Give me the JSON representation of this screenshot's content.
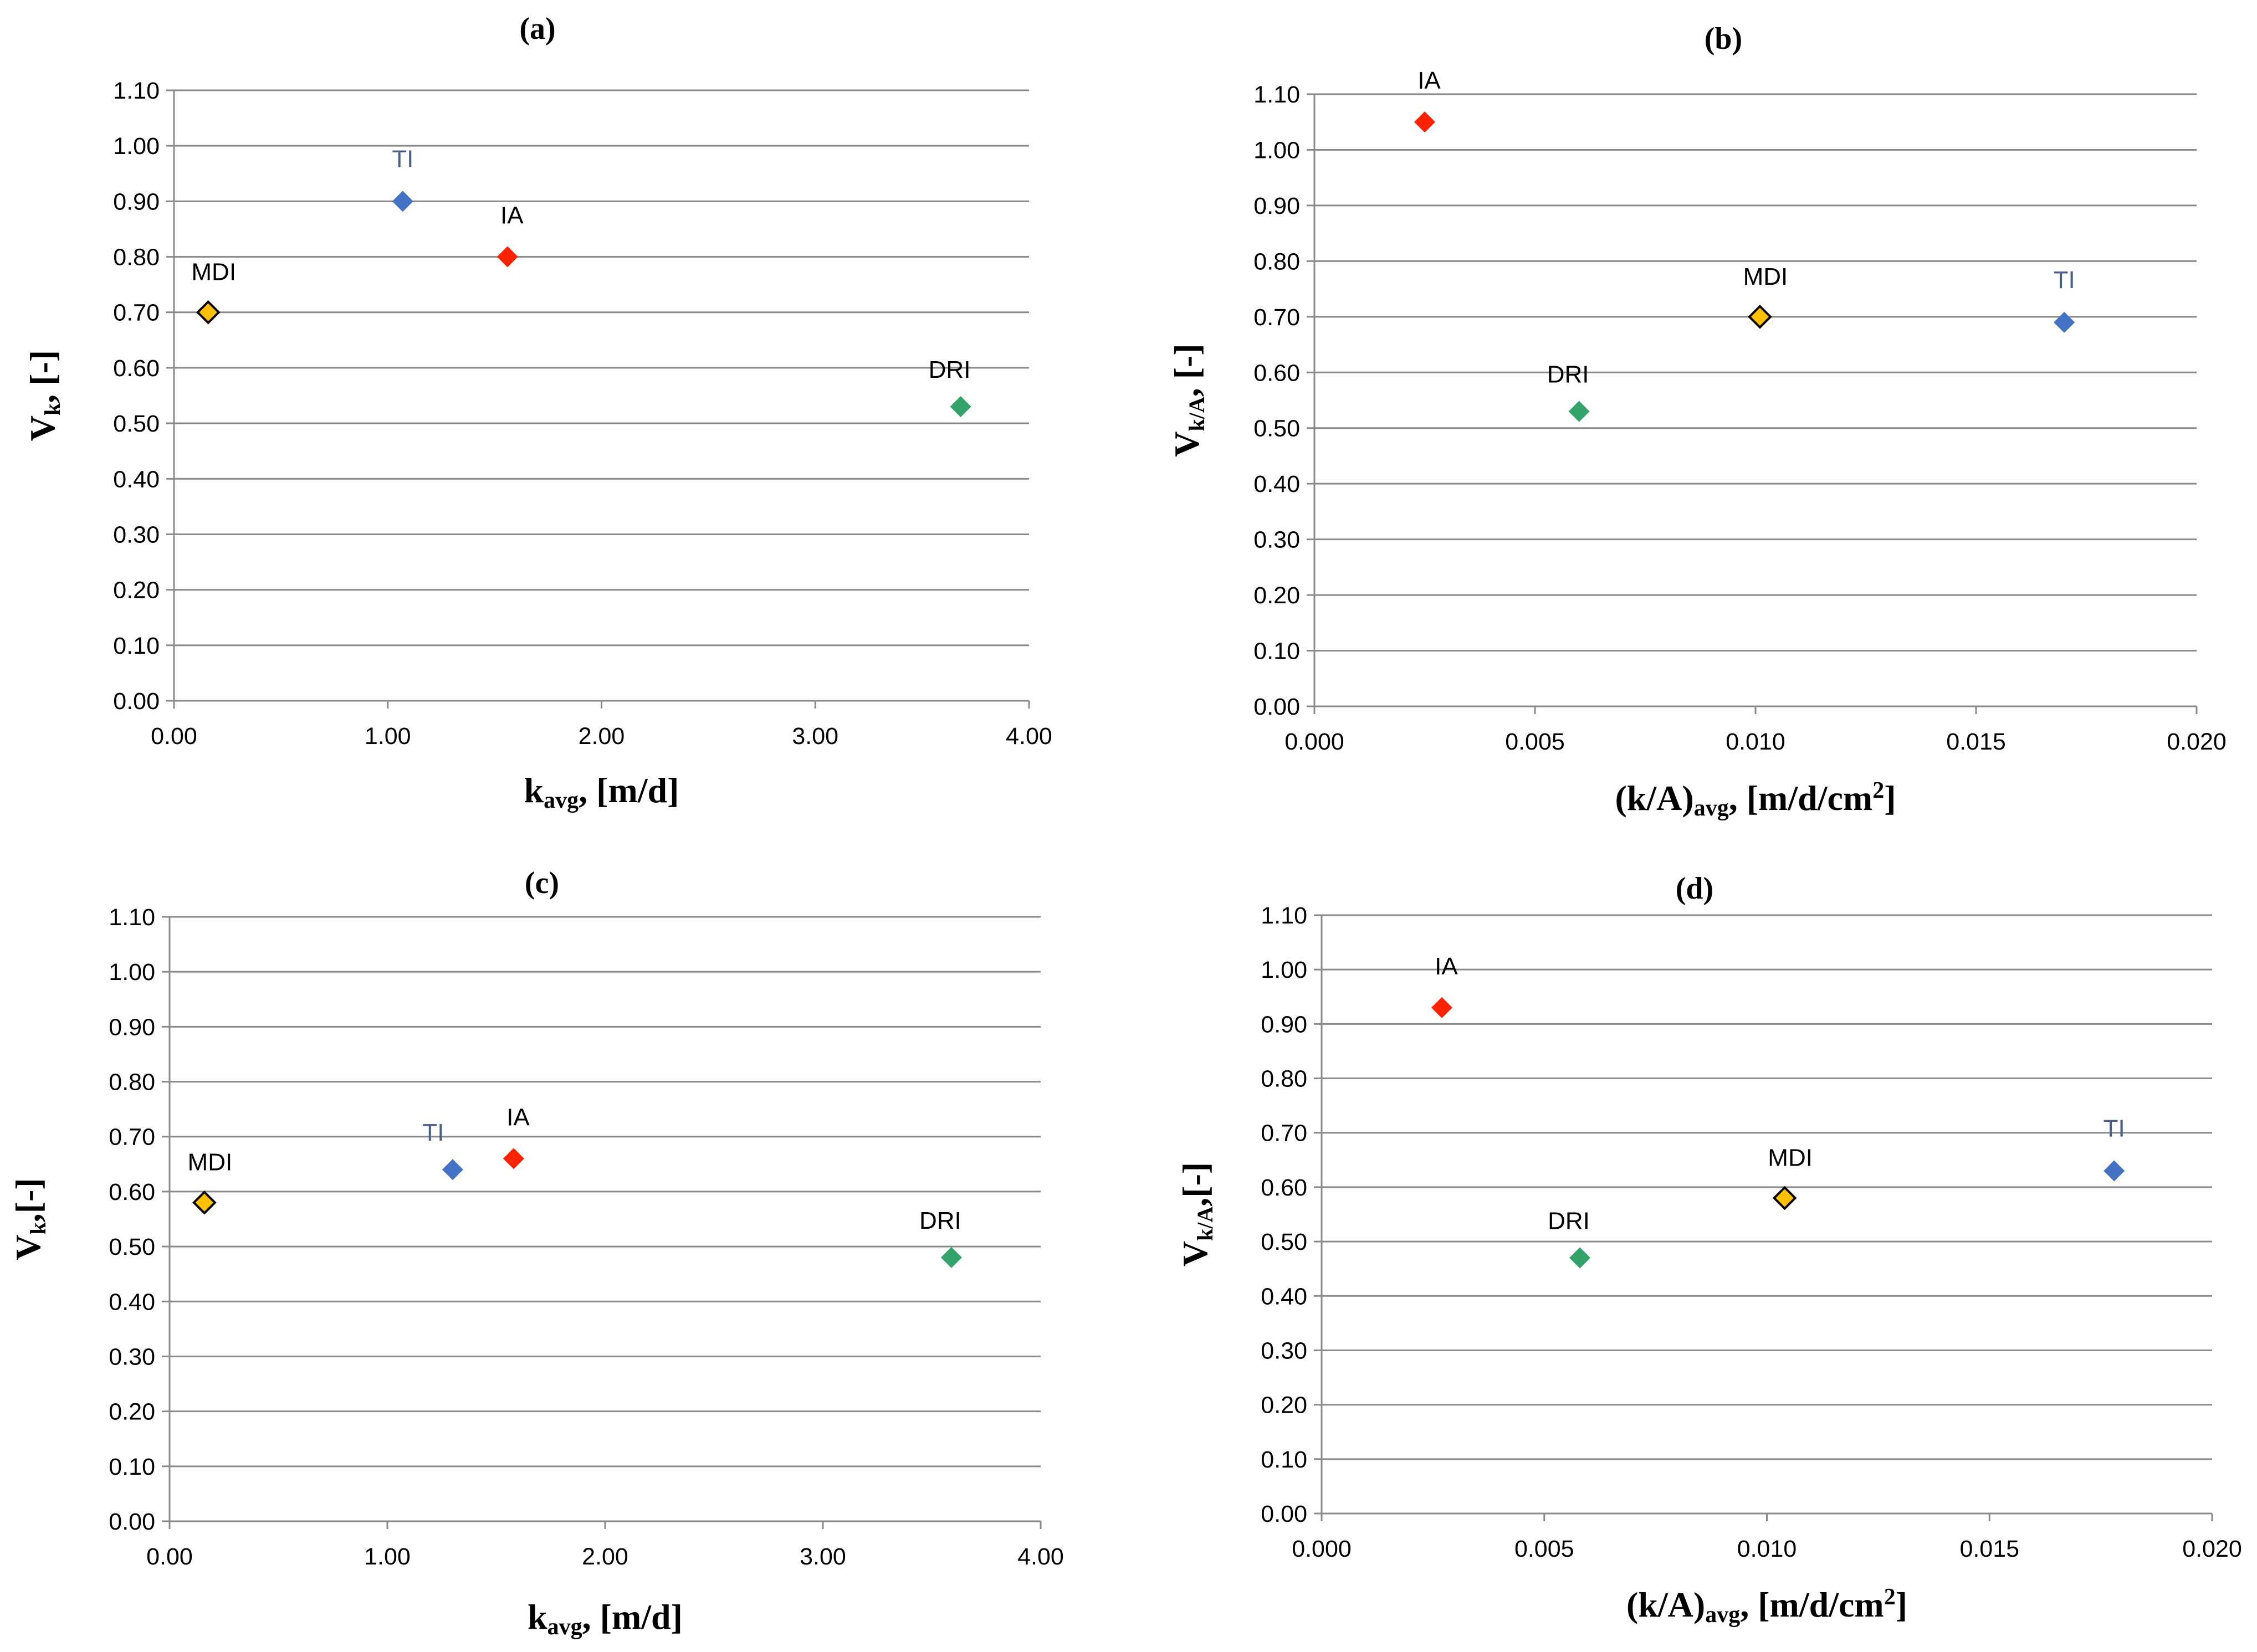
{
  "chart_data": [
    {
      "type": "scatter",
      "title": "(a)",
      "xlabel": {
        "main": "k",
        "sub": "avg",
        "rest": ", [m/d]"
      },
      "ylabel": {
        "main": "V",
        "sub": "k",
        "rest": ", [-]"
      },
      "xlim": [
        0,
        4
      ],
      "ylim": [
        0,
        1.1
      ],
      "xticks": [
        "0.00",
        "1.00",
        "2.00",
        "3.00",
        "4.00"
      ],
      "yticks": [
        "0.00",
        "0.10",
        "0.20",
        "0.30",
        "0.40",
        "0.50",
        "0.60",
        "0.70",
        "0.80",
        "0.90",
        "1.00",
        "1.10"
      ],
      "points": [
        {
          "name": "MDI",
          "x": 0.16,
          "y": 0.7
        },
        {
          "name": "TI",
          "x": 1.07,
          "y": 0.9
        },
        {
          "name": "IA",
          "x": 1.56,
          "y": 0.8
        },
        {
          "name": "DRI",
          "x": 3.68,
          "y": 0.53
        }
      ]
    },
    {
      "type": "scatter",
      "title": "(b)",
      "xlabel": {
        "main": "(k/A)",
        "sub": "avg",
        "rest": ", [m/d/cm",
        "sup": "2",
        "end": "]"
      },
      "ylabel": {
        "main": "V",
        "sub": "k/A",
        "rest": ", [-]"
      },
      "xlim": [
        0,
        0.02
      ],
      "ylim": [
        0,
        1.1
      ],
      "xticks": [
        "0.000",
        "0.005",
        "0.010",
        "0.015",
        "0.020"
      ],
      "yticks": [
        "0.00",
        "0.10",
        "0.20",
        "0.30",
        "0.40",
        "0.50",
        "0.60",
        "0.70",
        "0.80",
        "0.90",
        "1.00",
        "1.10"
      ],
      "points": [
        {
          "name": "IA",
          "x": 0.0025,
          "y": 1.05
        },
        {
          "name": "DRI",
          "x": 0.006,
          "y": 0.53
        },
        {
          "name": "MDI",
          "x": 0.0101,
          "y": 0.7
        },
        {
          "name": "TI",
          "x": 0.017,
          "y": 0.69
        }
      ]
    },
    {
      "type": "scatter",
      "title": "(c)",
      "xlabel": {
        "main": "k",
        "sub": "avg",
        "rest": ", [m/d]"
      },
      "ylabel": {
        "main": "V",
        "sub": "k",
        "rest": ",[-]"
      },
      "xlim": [
        0,
        4
      ],
      "ylim": [
        0,
        1.1
      ],
      "xticks": [
        "0.00",
        "1.00",
        "2.00",
        "3.00",
        "4.00"
      ],
      "yticks": [
        "0.00",
        "0.10",
        "0.20",
        "0.30",
        "0.40",
        "0.50",
        "0.60",
        "0.70",
        "0.80",
        "0.90",
        "1.00",
        "1.10"
      ],
      "points": [
        {
          "name": "MDI",
          "x": 0.16,
          "y": 0.58
        },
        {
          "name": "TI",
          "x": 1.3,
          "y": 0.64
        },
        {
          "name": "IA",
          "x": 1.58,
          "y": 0.66
        },
        {
          "name": "DRI",
          "x": 3.59,
          "y": 0.48
        }
      ]
    },
    {
      "type": "scatter",
      "title": "(d)",
      "xlabel": {
        "main": "(k/A)",
        "sub": "avg",
        "rest": ", [m/d/cm",
        "sup": "2",
        "end": "]"
      },
      "ylabel": {
        "main": "V",
        "sub": "k/A",
        "rest": ",[-]"
      },
      "xlim": [
        0,
        0.02
      ],
      "ylim": [
        0,
        1.1
      ],
      "xticks": [
        "0.000",
        "0.005",
        "0.010",
        "0.015",
        "0.020"
      ],
      "yticks": [
        "0.00",
        "0.10",
        "0.20",
        "0.30",
        "0.40",
        "0.50",
        "0.60",
        "0.70",
        "0.80",
        "0.90",
        "1.00",
        "1.10"
      ],
      "points": [
        {
          "name": "IA",
          "x": 0.0027,
          "y": 0.93
        },
        {
          "name": "DRI",
          "x": 0.0058,
          "y": 0.47
        },
        {
          "name": "MDI",
          "x": 0.0104,
          "y": 0.58
        },
        {
          "name": "TI",
          "x": 0.0178,
          "y": 0.63
        }
      ]
    }
  ],
  "colors": {
    "IA": "#ff2200",
    "TI": "#4472c4",
    "MDI": "#ffc000",
    "DRI": "#33a36a",
    "TI_label": "#4a5e8a",
    "label": "#000000"
  }
}
